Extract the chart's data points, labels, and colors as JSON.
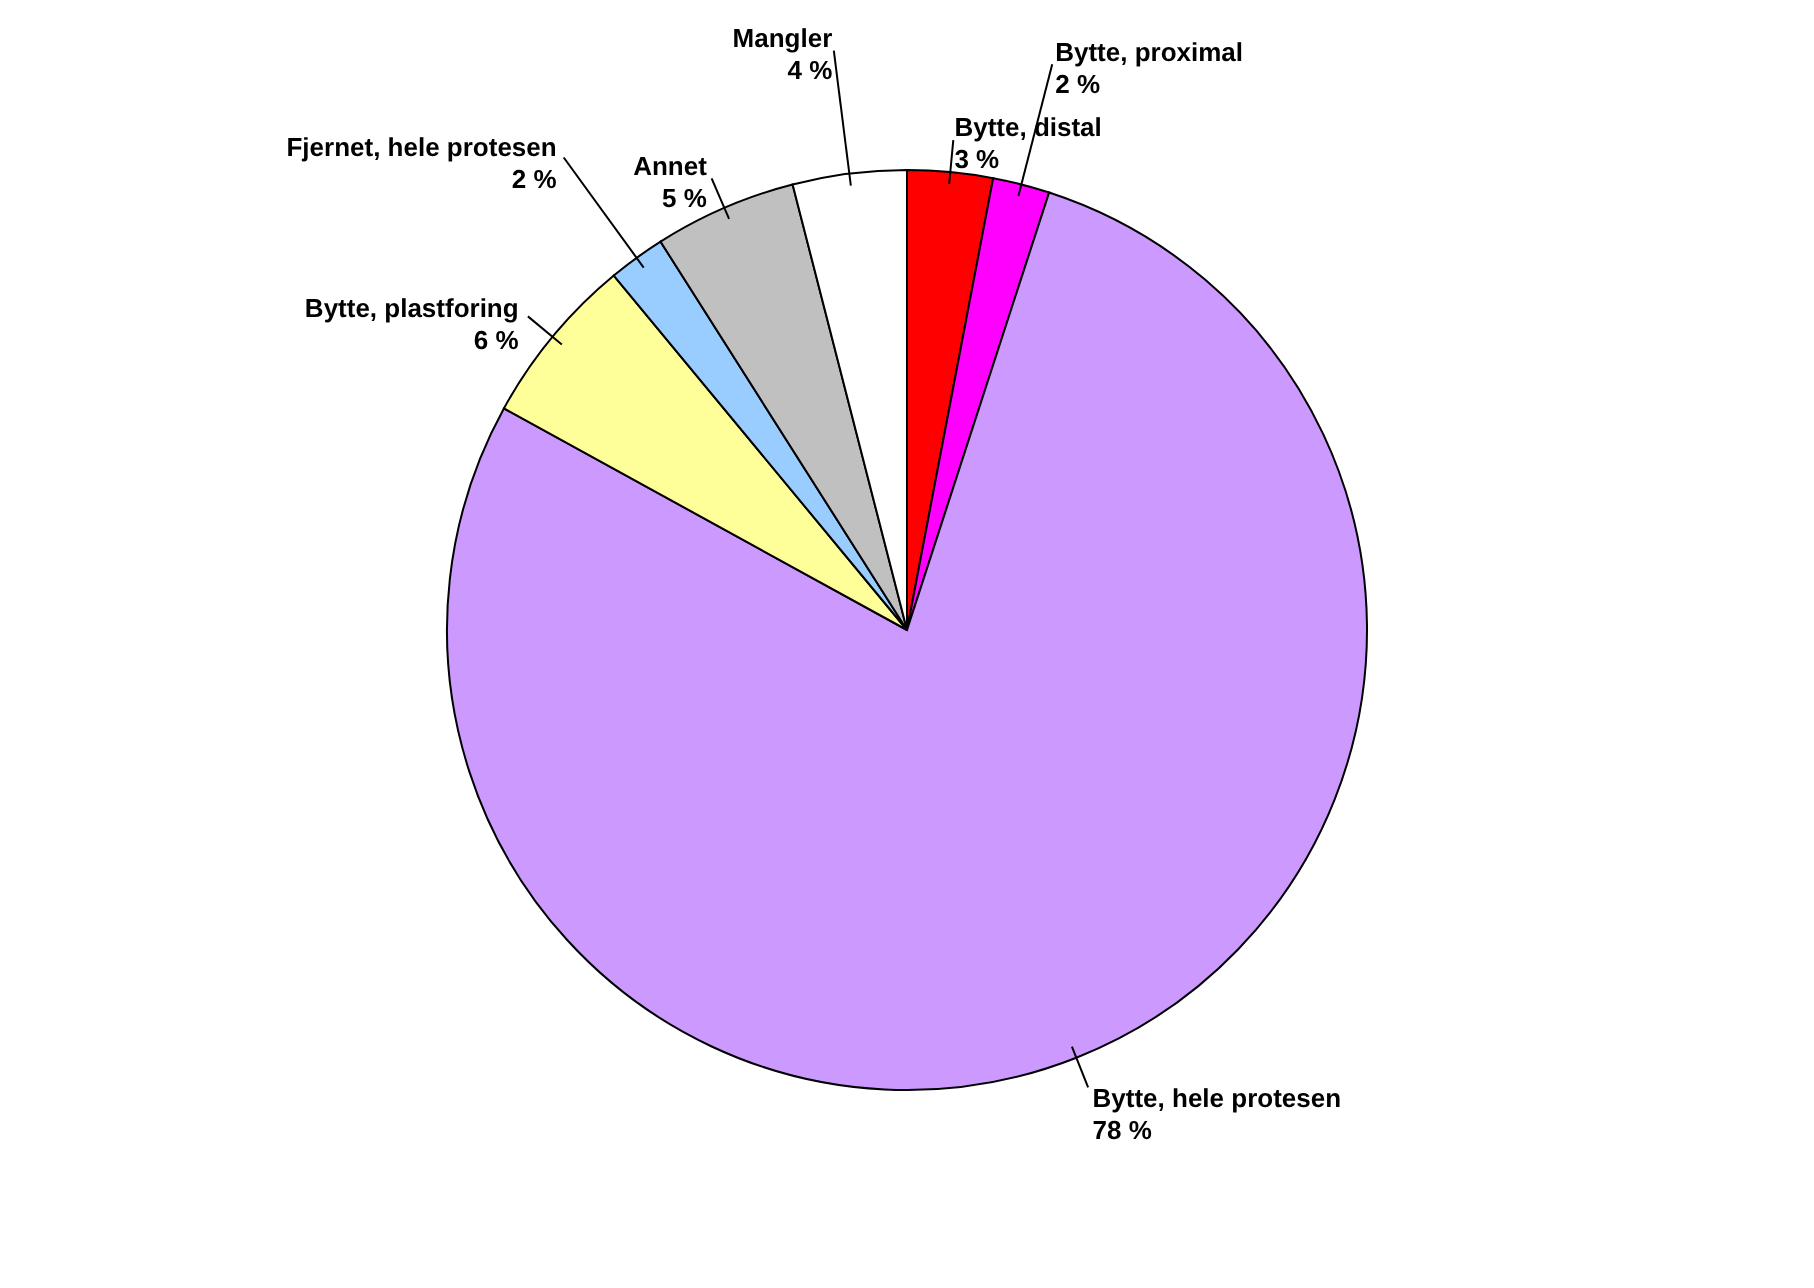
{
  "chart_data": {
    "type": "pie",
    "categories": [
      "Bytte, distal",
      "Bytte, proximal",
      "Bytte, hele protesen",
      "Bytte, plastforing",
      "Fjernet, hele protesen",
      "Annet",
      "Mangler"
    ],
    "values": [
      3,
      2,
      78,
      6,
      2,
      5,
      4
    ],
    "colors": [
      "#ff0000",
      "#ff00ff",
      "#cc99ff",
      "#ffff99",
      "#99ccff",
      "#c0c0c0",
      "#ffffff"
    ],
    "value_labels": [
      "3 %",
      "2 %",
      "78 %",
      "6 %",
      "2 %",
      "5 %",
      "4 %"
    ]
  }
}
